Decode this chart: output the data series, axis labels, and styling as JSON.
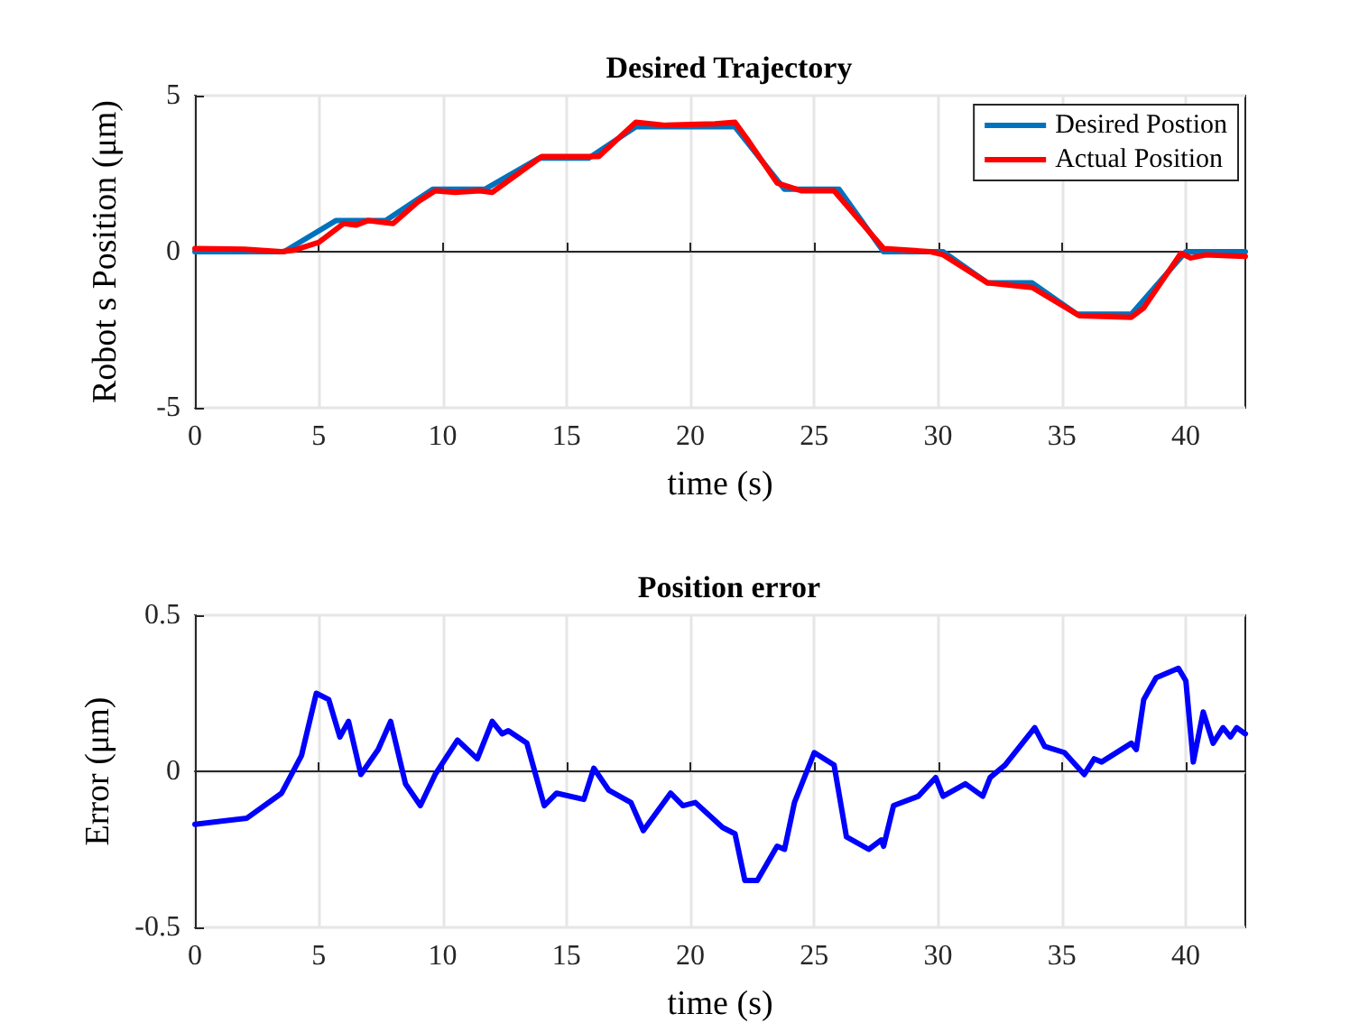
{
  "chart_data": [
    {
      "type": "line",
      "title": "Desired Trajectory",
      "xlabel": "time (s)",
      "ylabel": "Robot s Position (μm)",
      "xlim": [
        0,
        42.4
      ],
      "xticks": [
        0,
        5,
        10,
        15,
        20,
        25,
        30,
        35,
        40
      ],
      "ylim": [
        -5,
        5
      ],
      "yticks": [
        -5,
        0,
        5
      ],
      "grid": true,
      "legend": "top right",
      "series": [
        {
          "name": "Desired Postion",
          "color": "#0072bd",
          "x": [
            0,
            3.6,
            5.7,
            7.7,
            9.6,
            11.7,
            13.9,
            15.9,
            17.8,
            21.8,
            23.8,
            26.0,
            27.8,
            30.2,
            32.0,
            33.8,
            35.6,
            37.8,
            40.0,
            42.4
          ],
          "values": [
            0,
            0,
            1,
            1,
            2,
            2,
            3,
            3,
            4,
            4,
            2,
            2,
            0,
            0,
            -1,
            -1,
            -2,
            -2,
            0,
            0
          ]
        },
        {
          "name": "Actual Position",
          "color": "#ff0000",
          "x": [
            0,
            2,
            3.5,
            4,
            5,
            6,
            6.5,
            7,
            8,
            9,
            9.7,
            10.5,
            11.5,
            12,
            14,
            16.3,
            17.8,
            19,
            21,
            21.8,
            22.3,
            23.5,
            24.5,
            25.8,
            27.8,
            29.7,
            30.2,
            32,
            33.8,
            35.7,
            37.8,
            38.3,
            39.8,
            40.2,
            40.8,
            42.4
          ],
          "values": [
            0.1,
            0.08,
            0,
            0.05,
            0.3,
            0.9,
            0.85,
            1.0,
            0.9,
            1.6,
            1.95,
            1.9,
            1.95,
            1.9,
            3.05,
            3.05,
            4.15,
            4.05,
            4.1,
            4.15,
            3.6,
            2.2,
            1.95,
            1.95,
            0.1,
            0,
            -0.1,
            -1.0,
            -1.15,
            -2.05,
            -2.1,
            -1.8,
            -0.05,
            -0.2,
            -0.1,
            -0.15
          ]
        }
      ]
    },
    {
      "type": "line",
      "title": "Position error",
      "xlabel": "time (s)",
      "ylabel": "Error (μm)",
      "xlim": [
        0,
        42.4
      ],
      "xticks": [
        0,
        5,
        10,
        15,
        20,
        25,
        30,
        35,
        40
      ],
      "ylim": [
        -0.5,
        0.5
      ],
      "yticks": [
        -0.5,
        0,
        0.5
      ],
      "grid": true,
      "series": [
        {
          "color": "#0000ff",
          "x": [
            0,
            2.1,
            3.5,
            4.3,
            4.9,
            5.4,
            5.85,
            6.2,
            6.7,
            7.4,
            7.9,
            8.5,
            9.1,
            9.7,
            10.6,
            11.4,
            12.0,
            12.4,
            12.65,
            13.4,
            14.1,
            14.6,
            15.7,
            16.1,
            16.7,
            17.6,
            18.1,
            19.2,
            19.7,
            20.2,
            21.3,
            21.8,
            22.2,
            22.7,
            23.5,
            23.8,
            24.2,
            25.0,
            25.8,
            26.3,
            27.2,
            27.7,
            27.8,
            28.2,
            29.2,
            29.9,
            30.2,
            31.1,
            31.8,
            32.1,
            32.7,
            33.9,
            34.3,
            35.1,
            35.9,
            36.3,
            36.6,
            37.8,
            38.0,
            38.3,
            38.8,
            39.7,
            40.0,
            40.3,
            40.7,
            41.1,
            41.5,
            41.8,
            42.05,
            42.4
          ],
          "values": [
            -0.17,
            -0.15,
            -0.07,
            0.05,
            0.25,
            0.23,
            0.11,
            0.16,
            -0.01,
            0.07,
            0.16,
            -0.04,
            -0.11,
            -0.01,
            0.1,
            0.04,
            0.16,
            0.12,
            0.13,
            0.09,
            -0.11,
            -0.07,
            -0.09,
            0.01,
            -0.06,
            -0.1,
            -0.19,
            -0.07,
            -0.11,
            -0.1,
            -0.18,
            -0.2,
            -0.35,
            -0.35,
            -0.24,
            -0.25,
            -0.1,
            0.06,
            0.02,
            -0.21,
            -0.25,
            -0.22,
            -0.24,
            -0.11,
            -0.08,
            -0.02,
            -0.08,
            -0.04,
            -0.08,
            -0.02,
            0.02,
            0.14,
            0.08,
            0.06,
            -0.01,
            0.04,
            0.03,
            0.09,
            0.07,
            0.23,
            0.3,
            0.33,
            0.29,
            0.03,
            0.19,
            0.09,
            0.14,
            0.11,
            0.14,
            0.12
          ]
        }
      ]
    }
  ]
}
